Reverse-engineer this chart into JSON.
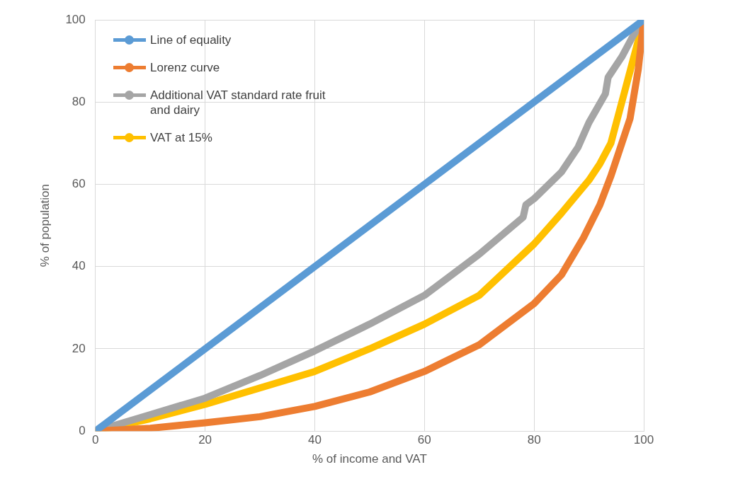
{
  "chart_data": {
    "type": "line",
    "xlabel": "% of income and VAT",
    "ylabel": "% of population",
    "xlim": [
      0,
      100
    ],
    "ylim": [
      0,
      100
    ],
    "xticks": [
      0,
      20,
      40,
      60,
      80,
      100
    ],
    "yticks": [
      0,
      20,
      40,
      60,
      80,
      100
    ],
    "grid": true,
    "legend": "top left",
    "marker": "none",
    "line_style": "solid",
    "series": [
      {
        "name": "Line of equality",
        "color": "#5b9bd5",
        "x": [
          0,
          100
        ],
        "values": [
          0,
          100
        ]
      },
      {
        "name": "Lorenz curve",
        "color": "#ed7d31",
        "x": [
          0,
          10,
          20,
          30,
          40,
          50,
          60,
          70,
          80,
          85,
          89,
          92,
          94,
          96,
          97.5,
          99,
          100
        ],
        "values": [
          0,
          0.7,
          2,
          3.5,
          6,
          9.5,
          14.5,
          21,
          31,
          38,
          47,
          55,
          62,
          70,
          76,
          88,
          100
        ]
      },
      {
        "name": "Additional VAT standard rate fruit and dairy",
        "color": "#a5a5a5",
        "x": [
          0,
          10,
          20,
          30,
          40,
          50,
          60,
          70,
          78,
          78.5,
          80,
          85,
          88,
          90,
          93,
          93.5,
          96,
          98,
          100
        ],
        "values": [
          0,
          4,
          8,
          13.5,
          19.5,
          26,
          33,
          43,
          52,
          55,
          56.5,
          63,
          69,
          75,
          82,
          86,
          91,
          96,
          100
        ]
      },
      {
        "name": "VAT at 15%",
        "color": "#ffc000",
        "x": [
          0,
          10,
          20,
          30,
          40,
          50,
          60,
          70,
          80,
          85,
          90,
          92,
          94,
          96,
          98,
          100
        ],
        "values": [
          0,
          3,
          6.5,
          10.5,
          14.5,
          20,
          26,
          33,
          45.5,
          53,
          61,
          65,
          70,
          80,
          90,
          100
        ]
      }
    ]
  }
}
